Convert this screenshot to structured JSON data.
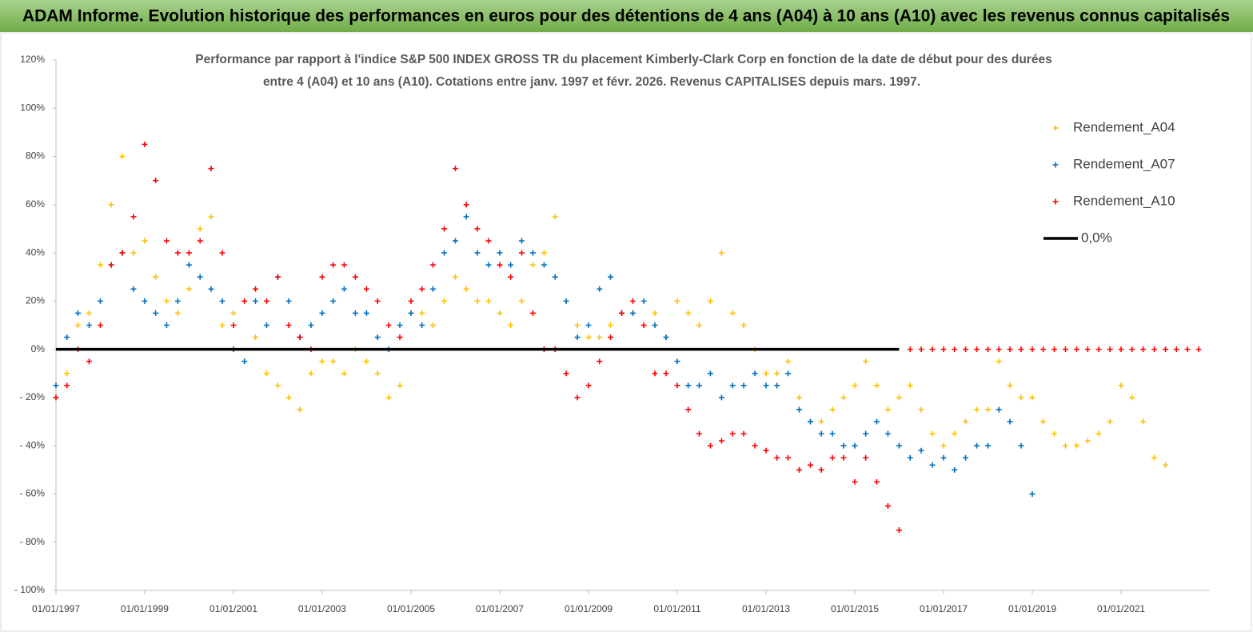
{
  "header": {
    "title": "ADAM Informe. Evolution historique des performances en euros pour des détentions de 4 ans (A04) à 10 ans (A10) avec les revenus connus capitalisés"
  },
  "chart_data": {
    "type": "scatter",
    "title": [
      "Performance par rapport à l'indice S&P 500 INDEX GROSS TR  du placement Kimberly-Clark Corp en fonction de la date de début pour des durées",
      "entre 4 (A04) et 10 ans (A10). Cotations entre janv. 1997 et févr. 2026. Revenus CAPITALISES depuis mars. 1997."
    ],
    "legend": "upper right",
    "x": [
      "1997-01-01",
      "1997-04-01",
      "1997-07-01",
      "1997-10-01",
      "1998-01-01",
      "1998-04-01",
      "1998-07-01",
      "1998-10-01",
      "1999-01-01",
      "1999-04-01",
      "1999-07-01",
      "1999-10-01",
      "2000-01-01",
      "2000-04-01",
      "2000-07-01",
      "2000-10-01",
      "2001-01-01",
      "2001-04-01",
      "2001-07-01",
      "2001-10-01",
      "2002-01-01",
      "2002-04-01",
      "2002-07-01",
      "2002-10-01",
      "2003-01-01",
      "2003-04-01",
      "2003-07-01",
      "2003-10-01",
      "2004-01-01",
      "2004-04-01",
      "2004-07-01",
      "2004-10-01",
      "2005-01-01",
      "2005-04-01",
      "2005-07-01",
      "2005-10-01",
      "2006-01-01",
      "2006-04-01",
      "2006-07-01",
      "2006-10-01",
      "2007-01-01",
      "2007-04-01",
      "2007-07-01",
      "2007-10-01",
      "2008-01-01",
      "2008-04-01",
      "2008-07-01",
      "2008-10-01",
      "2009-01-01",
      "2009-04-01",
      "2009-07-01",
      "2009-10-01",
      "2010-01-01",
      "2010-04-01",
      "2010-07-01",
      "2010-10-01",
      "2011-01-01",
      "2011-04-01",
      "2011-07-01",
      "2011-10-01",
      "2012-01-01",
      "2012-04-01",
      "2012-07-01",
      "2012-10-01",
      "2013-01-01",
      "2013-04-01",
      "2013-07-01",
      "2013-10-01",
      "2014-01-01",
      "2014-04-01",
      "2014-07-01",
      "2014-10-01",
      "2015-01-01",
      "2015-04-01",
      "2015-07-01",
      "2015-10-01",
      "2016-01-01",
      "2016-04-01",
      "2016-07-01",
      "2016-10-01",
      "2017-01-01",
      "2017-04-01",
      "2017-07-01",
      "2017-10-01",
      "2018-01-01",
      "2018-04-01",
      "2018-07-01",
      "2018-10-01",
      "2019-01-01",
      "2019-04-01",
      "2019-07-01",
      "2019-10-01",
      "2020-01-01",
      "2020-04-01",
      "2020-07-01",
      "2020-10-01",
      "2021-01-01",
      "2021-04-01",
      "2021-07-01",
      "2021-10-01",
      "2022-01-01",
      "2022-04-01",
      "2022-07-01",
      "2022-10-01"
    ],
    "series": [
      {
        "name": "Rendement_A04",
        "color": "#ffc000",
        "values": [
          -20,
          -10,
          10,
          15,
          35,
          60,
          80,
          40,
          45,
          30,
          20,
          15,
          25,
          50,
          55,
          10,
          15,
          20,
          5,
          -10,
          -15,
          -20,
          -25,
          -10,
          -5,
          -5,
          -10,
          0,
          -5,
          -10,
          -20,
          -15,
          15,
          15,
          10,
          20,
          30,
          25,
          20,
          20,
          15,
          10,
          20,
          35,
          40,
          55,
          20,
          10,
          5,
          5,
          10,
          15,
          15,
          10,
          15,
          5,
          20,
          15,
          10,
          20,
          40,
          15,
          10,
          0,
          -10,
          -10,
          -5,
          -20,
          -30,
          -30,
          -25,
          -20,
          -15,
          -5,
          -15,
          -25,
          -20,
          -15,
          -25,
          -35,
          -40,
          -35,
          -30,
          -25,
          -25,
          -5,
          -15,
          -20,
          -20,
          -30,
          -35,
          -40,
          -40,
          -38,
          -35,
          -30,
          -15,
          -20,
          -30,
          -45,
          -48,
          null,
          null,
          null
        ]
      },
      {
        "name": "Rendement_A07",
        "color": "#0070c0",
        "values": [
          -15,
          5,
          15,
          10,
          20,
          35,
          40,
          25,
          20,
          15,
          10,
          20,
          35,
          30,
          25,
          20,
          0,
          -5,
          20,
          10,
          30,
          20,
          5,
          10,
          15,
          20,
          25,
          15,
          15,
          5,
          0,
          10,
          15,
          10,
          25,
          40,
          45,
          55,
          40,
          35,
          40,
          35,
          45,
          40,
          35,
          30,
          20,
          5,
          10,
          25,
          30,
          15,
          15,
          20,
          10,
          5,
          -5,
          -15,
          -15,
          -10,
          -20,
          -15,
          -15,
          -10,
          -15,
          -15,
          -10,
          -25,
          -30,
          -35,
          -35,
          -40,
          -40,
          -35,
          -30,
          -35,
          -40,
          -45,
          -42,
          -48,
          -45,
          -50,
          -45,
          -40,
          -40,
          -25,
          -30,
          -40,
          -60,
          null,
          null,
          null,
          null,
          null,
          null,
          null,
          null,
          null,
          null,
          null,
          null,
          null,
          null,
          null
        ]
      },
      {
        "name": "Rendement_A10",
        "color": "#ff0000",
        "values": [
          -20,
          -15,
          0,
          -5,
          10,
          35,
          40,
          55,
          85,
          70,
          45,
          40,
          40,
          45,
          75,
          40,
          10,
          20,
          25,
          20,
          30,
          10,
          5,
          0,
          30,
          35,
          35,
          30,
          25,
          20,
          10,
          5,
          20,
          25,
          35,
          50,
          75,
          60,
          50,
          45,
          35,
          30,
          40,
          15,
          0,
          0,
          -10,
          -20,
          -15,
          -5,
          5,
          15,
          20,
          10,
          -10,
          -10,
          -15,
          -25,
          -35,
          -40,
          -38,
          -35,
          -35,
          -40,
          -42,
          -45,
          -45,
          -50,
          -48,
          -50,
          -45,
          -45,
          -55,
          -45,
          -55,
          -65,
          -75,
          0,
          0,
          0,
          0,
          0,
          0,
          0,
          0,
          0,
          0,
          0,
          0,
          0,
          0,
          0,
          0,
          0,
          0,
          0,
          0,
          0,
          0,
          0,
          0,
          0,
          0,
          0
        ]
      },
      {
        "name": "0,0%",
        "color": "#000000",
        "mode": "line",
        "values": [
          0,
          0,
          0,
          0,
          0,
          0,
          0,
          0,
          0,
          0,
          0,
          0,
          0,
          0,
          0,
          0,
          0,
          0,
          0,
          0,
          0,
          0,
          0,
          0,
          0,
          0,
          0,
          0,
          0,
          0,
          0,
          0,
          0,
          0,
          0,
          0,
          0,
          0,
          0,
          0,
          0,
          0,
          0,
          0,
          0,
          0,
          0,
          0,
          0,
          0,
          0,
          0,
          0,
          0,
          0,
          0,
          0,
          0,
          0,
          0,
          0,
          0,
          0,
          0,
          0,
          0,
          0,
          0,
          0,
          0,
          0,
          0,
          0,
          0,
          0,
          0,
          0,
          null,
          null,
          null,
          null,
          null,
          null,
          null,
          null,
          null,
          null,
          null,
          null,
          null,
          null,
          null,
          null,
          null,
          null,
          null,
          null,
          null,
          null,
          null,
          null,
          null,
          null
        ]
      }
    ],
    "xlim": [
      "1997-01-01",
      "2023-01-01"
    ],
    "xticks": [
      {
        "value": "1997-01-01",
        "label": "01/01/1997"
      },
      {
        "value": "1999-01-01",
        "label": "01/01/1999"
      },
      {
        "value": "2001-01-01",
        "label": "01/01/2001"
      },
      {
        "value": "2003-01-01",
        "label": "01/01/2003"
      },
      {
        "value": "2005-01-01",
        "label": "01/01/2005"
      },
      {
        "value": "2007-01-01",
        "label": "01/01/2007"
      },
      {
        "value": "2009-01-01",
        "label": "01/01/2009"
      },
      {
        "value": "2011-01-01",
        "label": "01/01/2011"
      },
      {
        "value": "2013-01-01",
        "label": "01/01/2013"
      },
      {
        "value": "2015-01-01",
        "label": "01/01/2015"
      },
      {
        "value": "2017-01-01",
        "label": "01/01/2017"
      },
      {
        "value": "2019-01-01",
        "label": "01/01/2019"
      },
      {
        "value": "2021-01-01",
        "label": "01/01/2021"
      }
    ],
    "ylim": [
      -100,
      120
    ],
    "yticks": [
      {
        "value": -100,
        "label": "- 100%"
      },
      {
        "value": -80,
        "label": "- 80%"
      },
      {
        "value": -60,
        "label": "- 60%"
      },
      {
        "value": -40,
        "label": "- 40%"
      },
      {
        "value": -20,
        "label": "- 20%"
      },
      {
        "value": 0,
        "label": "0%"
      },
      {
        "value": 20,
        "label": "20%"
      },
      {
        "value": 40,
        "label": "40%"
      },
      {
        "value": 60,
        "label": "60%"
      },
      {
        "value": 80,
        "label": "80%"
      },
      {
        "value": 100,
        "label": "100%"
      },
      {
        "value": 120,
        "label": "120%"
      }
    ]
  }
}
